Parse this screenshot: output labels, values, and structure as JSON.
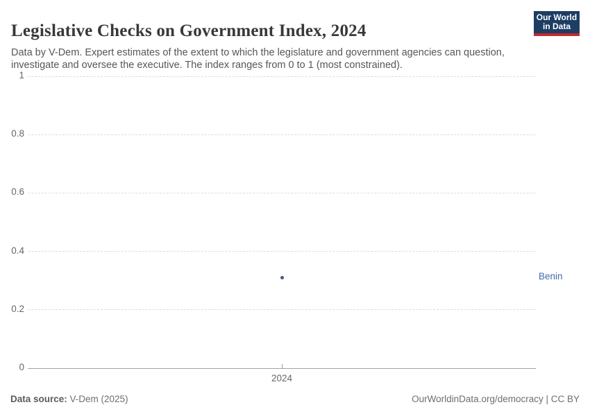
{
  "header": {
    "title": "Legislative Checks on Government Index, 2024",
    "subtitle": "Data by V-Dem. Expert estimates of the extent to which the legislature and government agencies can question, investigate and oversee the executive. The index ranges from 0 to 1 (most constrained).",
    "logo": {
      "line1": "Our World",
      "line2": "in Data"
    }
  },
  "footer": {
    "source_label": "Data source:",
    "source_value": " V-Dem (2025)",
    "link_text": "OurWorldinData.org/democracy | CC BY"
  },
  "chart_data": {
    "type": "scatter",
    "title": "Legislative Checks on Government Index, 2024",
    "x": [
      2024
    ],
    "xtick_labels": [
      "2024"
    ],
    "series": [
      {
        "name": "Benin",
        "values": [
          0.31
        ]
      }
    ],
    "ylim": [
      0,
      1
    ],
    "yticks": [
      0,
      0.2,
      0.4,
      0.6,
      0.8,
      1
    ],
    "ytick_labels": [
      "0",
      "0.2",
      "0.4",
      "0.6",
      "0.8",
      "1"
    ],
    "xlabel": "",
    "ylabel": "",
    "grid": true,
    "legend_position": "right-entity-label",
    "point_color": "#3e5c8f",
    "label_color": "#4269ae"
  }
}
